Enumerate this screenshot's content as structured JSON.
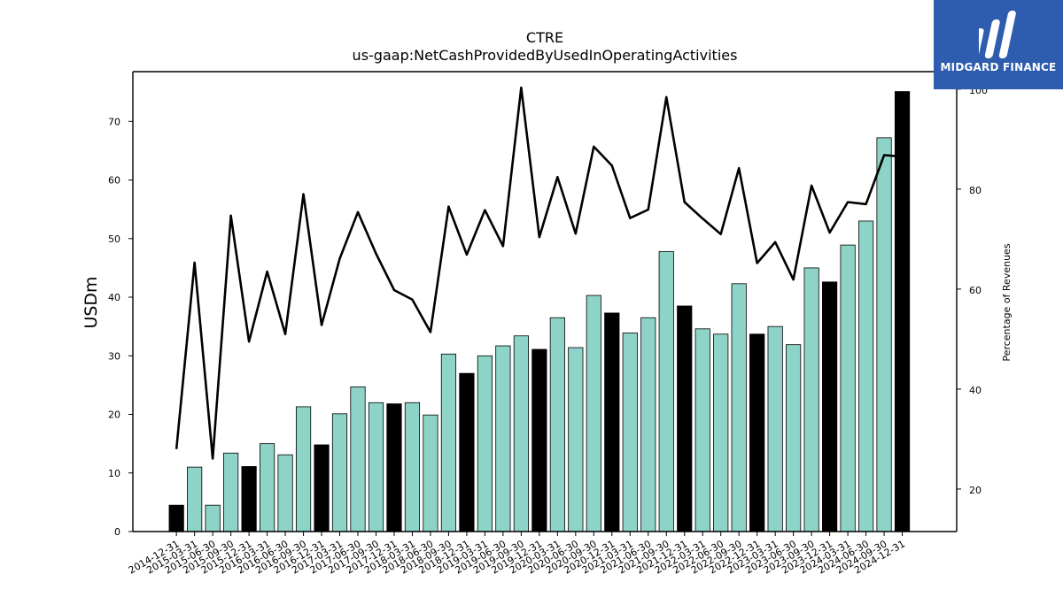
{
  "brand": {
    "name": "MIDGARD FINANCE",
    "accent": "#2e5cae"
  },
  "chart_data": {
    "type": "bar",
    "title": "CTRE",
    "subtitle": "us-gaap:NetCashProvidedByUsedInOperatingActivities",
    "ylabel": "USDm",
    "y2label": "Percentage of Revenues",
    "ylim": [
      0,
      78.5
    ],
    "y2lim": [
      11.5,
      103.5
    ],
    "yticks": [
      0,
      10,
      20,
      30,
      40,
      50,
      60,
      70
    ],
    "y2ticks": [
      20,
      40,
      60,
      80,
      100
    ],
    "grid": false,
    "bar_color": "#8dd3c7",
    "highlight_color": "#000000",
    "line_color": "#000000",
    "categories": [
      "2014-12-31",
      "2015-03-31",
      "2015-06-30",
      "2015-09-30",
      "2015-12-31",
      "2016-03-31",
      "2016-06-30",
      "2016-09-30",
      "2016-12-31",
      "2017-03-31",
      "2017-06-30",
      "2017-09-30",
      "2017-12-31",
      "2018-03-31",
      "2018-06-30",
      "2018-09-30",
      "2018-12-31",
      "2019-03-31",
      "2019-06-30",
      "2019-09-30",
      "2019-12-31",
      "2020-03-31",
      "2020-06-30",
      "2020-09-30",
      "2020-12-31",
      "2021-03-31",
      "2021-06-30",
      "2021-09-30",
      "2021-12-31",
      "2022-03-31",
      "2022-06-30",
      "2022-09-30",
      "2022-12-31",
      "2023-03-31",
      "2023-06-30",
      "2023-09-30",
      "2023-12-31",
      "2024-03-31",
      "2024-06-30",
      "2024-09-30",
      "2024-12-31"
    ],
    "series": [
      {
        "type": "bar",
        "axis": "left",
        "values": [
          4.5,
          11.0,
          4.5,
          13.4,
          11.1,
          15.0,
          13.1,
          21.3,
          14.8,
          20.1,
          24.7,
          22.0,
          21.8,
          22.0,
          19.9,
          30.3,
          27.0,
          30.0,
          31.7,
          33.4,
          31.1,
          36.5,
          31.4,
          40.3,
          37.3,
          33.9,
          36.5,
          47.8,
          38.5,
          34.6,
          33.7,
          42.3,
          33.7,
          35.0,
          31.9,
          45.0,
          42.6,
          48.9,
          53.0,
          67.2,
          75.1
        ],
        "highlight": [
          true,
          false,
          false,
          false,
          true,
          false,
          false,
          false,
          true,
          false,
          false,
          false,
          true,
          false,
          false,
          false,
          true,
          false,
          false,
          false,
          true,
          false,
          false,
          false,
          true,
          false,
          false,
          false,
          true,
          false,
          false,
          false,
          true,
          false,
          false,
          false,
          true,
          false,
          false,
          false,
          true
        ]
      },
      {
        "type": "line",
        "axis": "right",
        "values": [
          28.0,
          65.3,
          26.1,
          74.7,
          49.5,
          63.5,
          51.0,
          79.0,
          52.8,
          66.1,
          75.4,
          67.1,
          59.8,
          57.9,
          51.4,
          76.5,
          66.9,
          75.8,
          68.6,
          100.3,
          70.4,
          82.4,
          71.1,
          88.5,
          84.7,
          74.2,
          75.9,
          98.4,
          77.4,
          74.1,
          71.0,
          84.2,
          65.2,
          69.4,
          61.9,
          80.7,
          71.3,
          77.4,
          77.0,
          86.8,
          86.5
        ]
      }
    ]
  }
}
